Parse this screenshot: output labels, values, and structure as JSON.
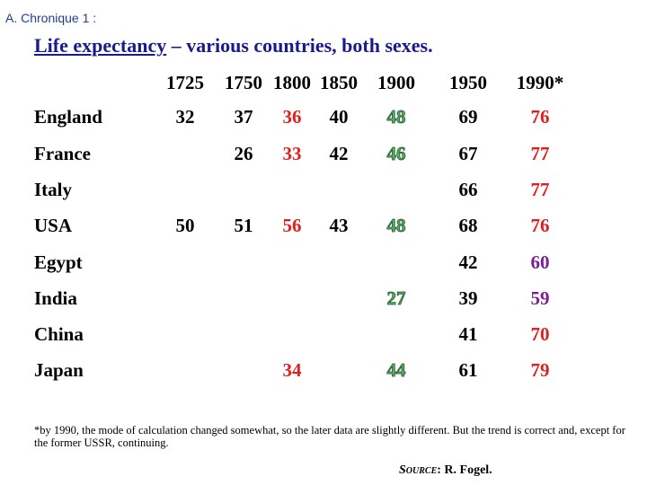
{
  "header_label": "A. Chronique 1 :",
  "title": {
    "underlined": "Life expectancy",
    "rest": " – various countries, both sexes."
  },
  "years": [
    "1725",
    "1750",
    "1800",
    "1850",
    "1900",
    "1950",
    "1990*"
  ],
  "colors": {
    "black": "#000000",
    "red": "#e02020",
    "green": "#5fa66a",
    "purple": "#7a1f8f",
    "title_blue": "#1a1a8c"
  },
  "rows": [
    {
      "country": "England",
      "cells": [
        {
          "col": 0,
          "v": "32",
          "c": "black"
        },
        {
          "col": 1,
          "v": "37",
          "c": "black"
        },
        {
          "col": 2,
          "v": "36",
          "c": "red"
        },
        {
          "col": 3,
          "v": "40",
          "c": "black"
        },
        {
          "col": 4,
          "v": "48",
          "c": "green"
        },
        {
          "col": 5,
          "v": "69",
          "c": "black"
        },
        {
          "col": 6,
          "v": "76",
          "c": "red"
        }
      ]
    },
    {
      "country": "France",
      "cells": [
        {
          "col": 1,
          "v": "26",
          "c": "black"
        },
        {
          "col": 2,
          "v": "33",
          "c": "red"
        },
        {
          "col": 3,
          "v": "42",
          "c": "black"
        },
        {
          "col": 4,
          "v": "46",
          "c": "green"
        },
        {
          "col": 5,
          "v": "67",
          "c": "black"
        },
        {
          "col": 6,
          "v": "77",
          "c": "red"
        }
      ]
    },
    {
      "country": "Italy",
      "cells": [
        {
          "col": 5,
          "v": "66",
          "c": "black"
        },
        {
          "col": 6,
          "v": "77",
          "c": "red"
        }
      ]
    },
    {
      "country": "USA",
      "cells": [
        {
          "col": 0,
          "v": "50",
          "c": "black"
        },
        {
          "col": 1,
          "v": "51",
          "c": "black"
        },
        {
          "col": 2,
          "v": "56",
          "c": "red"
        },
        {
          "col": 3,
          "v": "43",
          "c": "black"
        },
        {
          "col": 4,
          "v": "48",
          "c": "green"
        },
        {
          "col": 5,
          "v": "68",
          "c": "black"
        },
        {
          "col": 6,
          "v": "76",
          "c": "red"
        }
      ]
    },
    {
      "country": "Egypt",
      "cells": [
        {
          "col": 5,
          "v": "42",
          "c": "black"
        },
        {
          "col": 6,
          "v": "60",
          "c": "purple"
        }
      ]
    },
    {
      "country": "India",
      "cells": [
        {
          "col": 4,
          "v": "27",
          "c": "green"
        },
        {
          "col": 5,
          "v": "39",
          "c": "black"
        },
        {
          "col": 6,
          "v": "59",
          "c": "purple"
        }
      ]
    },
    {
      "country": "China",
      "cells": [
        {
          "col": 5,
          "v": "41",
          "c": "black"
        },
        {
          "col": 6,
          "v": "70",
          "c": "red"
        }
      ]
    },
    {
      "country": "Japan",
      "cells": [
        {
          "col": 2,
          "v": "34",
          "c": "red"
        },
        {
          "col": 4,
          "v": "44",
          "c": "green"
        },
        {
          "col": 5,
          "v": "61",
          "c": "black"
        },
        {
          "col": 6,
          "v": "79",
          "c": "red"
        }
      ]
    }
  ],
  "footnote": "*by 1990, the mode of calculation changed somewhat, so the later data are slightly different. But the trend is correct and, except for the former USSR, continuing.",
  "source": {
    "label": "Source",
    "name": ": R. Fogel."
  }
}
